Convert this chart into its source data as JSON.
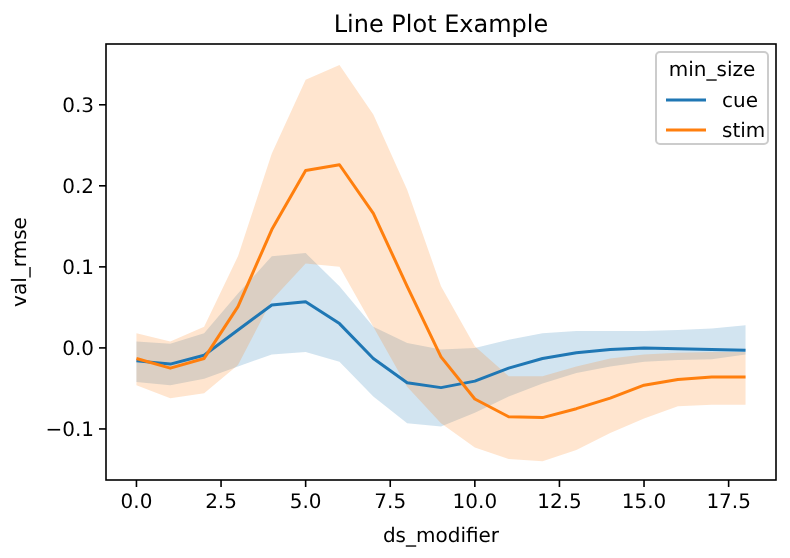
{
  "chart_data": {
    "type": "line",
    "title": "Line Plot Example",
    "xlabel": "ds_modifier",
    "ylabel": "val_rmse",
    "legend_title": "min_size",
    "legend": "top right",
    "grid": false,
    "x": [
      0,
      1,
      2,
      3,
      4,
      5,
      6,
      7,
      8,
      9,
      10,
      11,
      12,
      13,
      14,
      15,
      16,
      17,
      18
    ],
    "xlim": [
      -0.9,
      18.9
    ],
    "xticks": [
      {
        "value": 0,
        "label": "0.0"
      },
      {
        "value": 2.5,
        "label": "2.5"
      },
      {
        "value": 5,
        "label": "5.0"
      },
      {
        "value": 7.5,
        "label": "7.5"
      },
      {
        "value": 10,
        "label": "10.0"
      },
      {
        "value": 12.5,
        "label": "12.5"
      },
      {
        "value": 15,
        "label": "15.0"
      },
      {
        "value": 17.5,
        "label": "17.5"
      }
    ],
    "ylim": [
      -0.163,
      0.375
    ],
    "yticks": [
      {
        "value": -0.1,
        "label": "−0.1"
      },
      {
        "value": 0,
        "label": "0.0"
      },
      {
        "value": 0.1,
        "label": "0.1"
      },
      {
        "value": 0.2,
        "label": "0.2"
      },
      {
        "value": 0.3,
        "label": "0.3"
      }
    ],
    "series": [
      {
        "name": "cue",
        "color": "#1f77b4",
        "values": [
          -0.016,
          -0.02,
          -0.009,
          0.022,
          0.053,
          0.057,
          0.03,
          -0.013,
          -0.043,
          -0.049,
          -0.041,
          -0.025,
          -0.013,
          -0.006,
          -0.002,
          0,
          -0.001,
          -0.002,
          -0.003
        ],
        "lower": [
          -0.042,
          -0.046,
          -0.038,
          -0.023,
          -0.008,
          -0.005,
          -0.017,
          -0.06,
          -0.093,
          -0.097,
          -0.08,
          -0.06,
          -0.044,
          -0.031,
          -0.023,
          -0.017,
          -0.015,
          -0.014,
          -0.008
        ],
        "upper": [
          0.008,
          0.005,
          0.018,
          0.067,
          0.113,
          0.117,
          0.076,
          0.026,
          0.006,
          -0.002,
          0,
          0.01,
          0.018,
          0.021,
          0.021,
          0.021,
          0.022,
          0.024,
          0.028
        ]
      },
      {
        "name": "stim",
        "color": "#ff7f0e",
        "values": [
          -0.013,
          -0.025,
          -0.013,
          0.051,
          0.146,
          0.219,
          0.226,
          0.166,
          0.076,
          -0.011,
          -0.063,
          -0.085,
          -0.086,
          -0.075,
          -0.062,
          -0.046,
          -0.039,
          -0.036,
          -0.036
        ],
        "lower": [
          -0.046,
          -0.062,
          -0.056,
          -0.021,
          0.059,
          0.104,
          0.1,
          0.026,
          -0.048,
          -0.093,
          -0.123,
          -0.137,
          -0.14,
          -0.126,
          -0.105,
          -0.087,
          -0.072,
          -0.07,
          -0.07
        ],
        "upper": [
          0.018,
          0.008,
          0.026,
          0.113,
          0.24,
          0.331,
          0.349,
          0.288,
          0.195,
          0.076,
          0.002,
          -0.035,
          -0.035,
          -0.023,
          -0.013,
          -0.008,
          -0.006,
          -0.005,
          -0.005
        ]
      }
    ]
  }
}
